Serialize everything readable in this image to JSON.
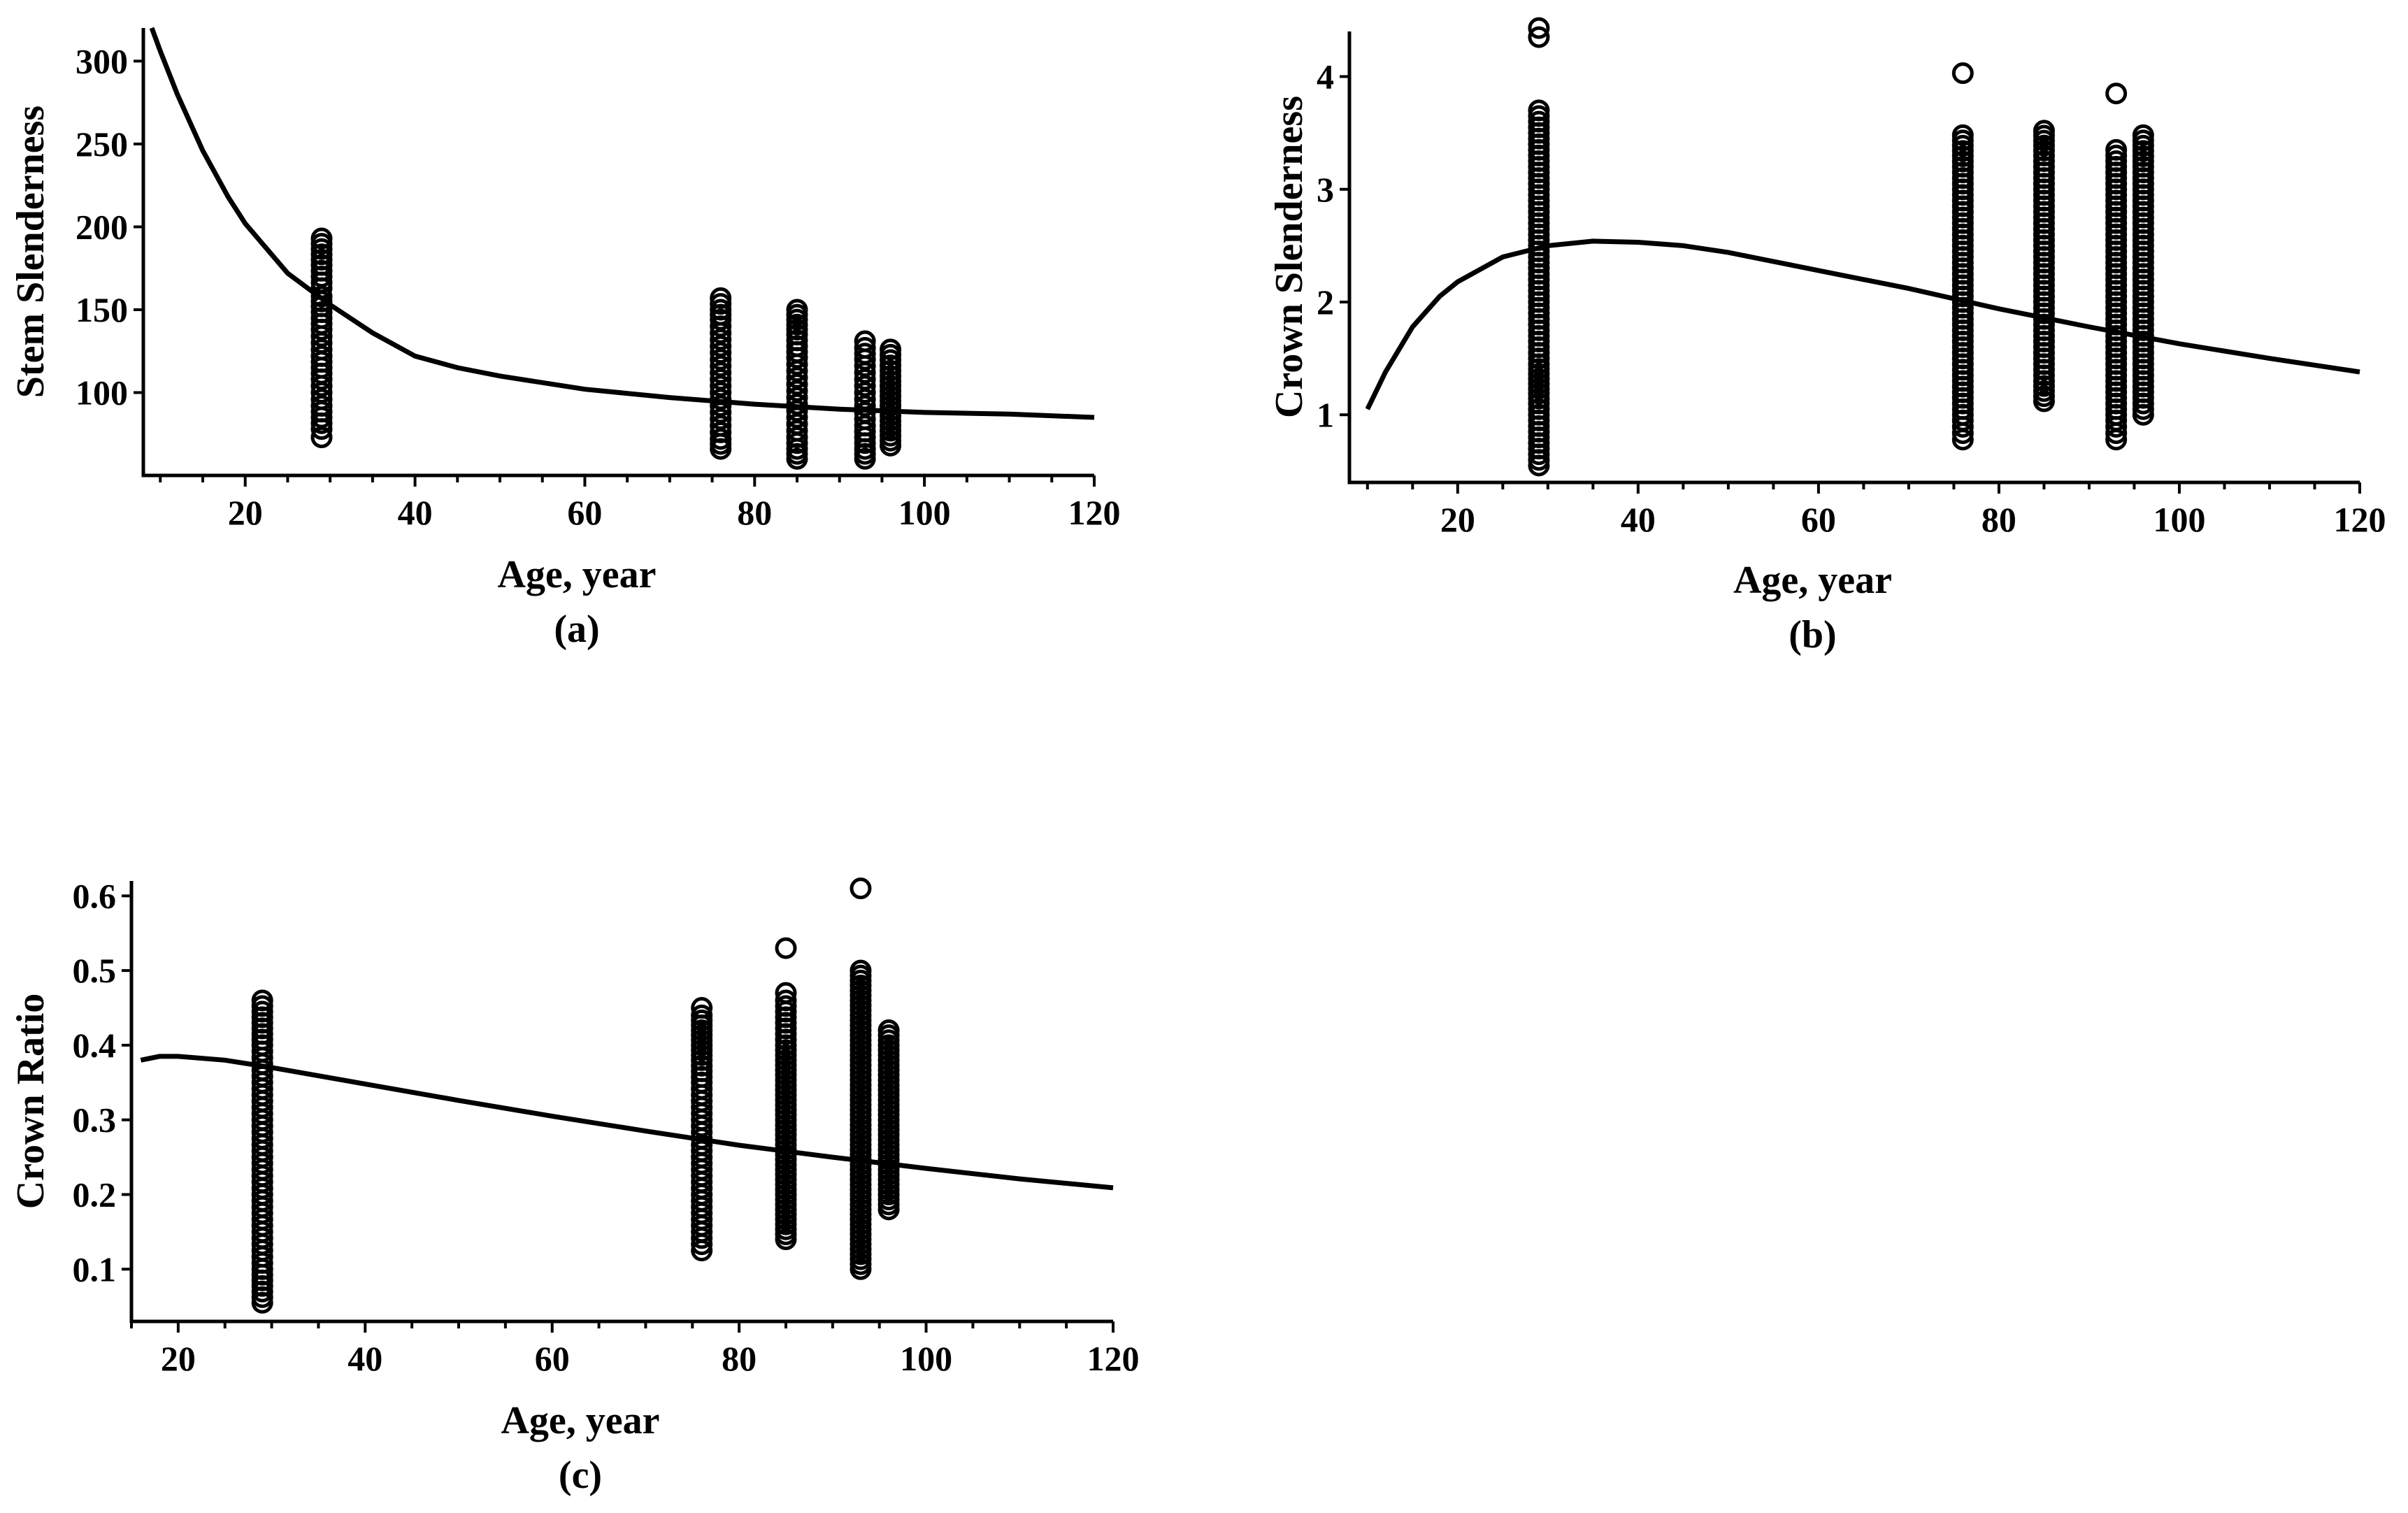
{
  "chart_data": [
    {
      "id": "a",
      "type": "scatter",
      "panel_label": "(a)",
      "xlabel": "Age, year",
      "ylabel": "Stem Slenderness",
      "xlim": [
        8,
        120
      ],
      "ylim": [
        50,
        320
      ],
      "xticks": [
        20,
        40,
        60,
        80,
        100,
        120
      ],
      "xtick_labels": [
        "20",
        "40",
        "60",
        "80",
        "100",
        "120"
      ],
      "yticks": [
        100,
        150,
        200,
        250,
        300
      ],
      "ytick_labels": [
        "100",
        "150",
        "200",
        "250",
        "300"
      ],
      "fitted_curve": {
        "x": [
          9,
          10,
          12,
          15,
          18,
          20,
          25,
          30,
          35,
          40,
          45,
          50,
          60,
          70,
          80,
          90,
          100,
          110,
          120
        ],
        "y": [
          322,
          306,
          280,
          246,
          218,
          202,
          172,
          153,
          136,
          122,
          115,
          110,
          102,
          97,
          93,
          90,
          88,
          87,
          85
        ]
      },
      "points": [
        {
          "x": 29,
          "y": [
            73,
            78,
            85,
            92,
            100,
            108,
            115,
            122,
            130,
            138,
            145,
            152,
            158,
            163,
            170,
            177,
            193
          ]
        },
        {
          "x": 76,
          "y": [
            66,
            72,
            80,
            88,
            96,
            104,
            112,
            120,
            128,
            136,
            144,
            150,
            157
          ]
        },
        {
          "x": 85,
          "y": [
            60,
            66,
            73,
            81,
            89,
            97,
            105,
            113,
            121,
            128,
            135,
            150
          ]
        },
        {
          "x": 93,
          "y": [
            60,
            66,
            73,
            80,
            88,
            96,
            104,
            112,
            120,
            127,
            131
          ]
        },
        {
          "x": 96,
          "y": [
            68,
            74,
            80,
            86,
            92,
            98,
            104,
            110,
            126
          ]
        }
      ]
    },
    {
      "id": "b",
      "type": "scatter",
      "panel_label": "(b)",
      "xlabel": "Age, year",
      "ylabel": "Crown Slenderness",
      "xlim": [
        8,
        120
      ],
      "ylim": [
        0.4,
        4.4
      ],
      "xticks": [
        20,
        40,
        60,
        80,
        100,
        120
      ],
      "xtick_labels": [
        "20",
        "40",
        "60",
        "80",
        "100",
        "120"
      ],
      "yticks": [
        1,
        2,
        3,
        4
      ],
      "ytick_labels": [
        "1",
        "2",
        "3",
        "4"
      ],
      "fitted_curve": {
        "x": [
          10,
          12,
          15,
          18,
          20,
          25,
          30,
          35,
          40,
          45,
          50,
          60,
          70,
          80,
          90,
          100,
          110,
          120
        ],
        "y": [
          1.05,
          1.38,
          1.78,
          2.05,
          2.18,
          2.4,
          2.5,
          2.54,
          2.53,
          2.5,
          2.44,
          2.28,
          2.12,
          1.94,
          1.78,
          1.63,
          1.5,
          1.38
        ]
      },
      "points": [
        {
          "x": 29,
          "y": [
            0.55,
            0.75,
            1.0,
            1.1,
            1.45,
            1.6,
            1.75,
            1.9,
            2.05,
            2.2,
            2.35,
            2.5,
            2.65,
            2.8,
            2.95,
            3.1,
            3.25,
            3.4,
            3.55,
            3.7,
            4.35,
            4.43
          ]
        },
        {
          "x": 76,
          "y": [
            0.78,
            0.95,
            1.2,
            1.4,
            1.6,
            1.8,
            2.0,
            2.2,
            2.4,
            2.6,
            2.8,
            3.0,
            3.2,
            3.48,
            4.03
          ]
        },
        {
          "x": 85,
          "y": [
            1.12,
            1.3,
            1.5,
            1.7,
            1.9,
            2.1,
            2.3,
            2.5,
            2.7,
            2.9,
            3.1,
            3.3,
            3.52
          ]
        },
        {
          "x": 93,
          "y": [
            0.78,
            0.95,
            1.1,
            1.3,
            1.5,
            1.7,
            1.9,
            2.1,
            2.3,
            2.5,
            2.7,
            2.9,
            3.1,
            3.35,
            3.85
          ]
        },
        {
          "x": 96,
          "y": [
            1.0,
            1.1,
            1.25,
            1.45,
            1.65,
            1.85,
            2.05,
            2.25,
            2.45,
            2.65,
            2.85,
            3.05,
            3.2,
            3.48
          ]
        }
      ]
    },
    {
      "id": "c",
      "type": "scatter",
      "panel_label": "(c)",
      "xlabel": "Age, year",
      "ylabel": "Crown Ratio",
      "xlim": [
        15,
        120
      ],
      "ylim": [
        0.03,
        0.62
      ],
      "xticks": [
        20,
        40,
        60,
        80,
        100,
        120
      ],
      "xtick_labels": [
        "20",
        "40",
        "60",
        "80",
        "100",
        "120"
      ],
      "yticks": [
        0.1,
        0.2,
        0.3,
        0.4,
        0.5,
        0.6
      ],
      "ytick_labels": [
        "0.1",
        "0.2",
        "0.3",
        "0.4",
        "0.5",
        "0.6"
      ],
      "fitted_curve": {
        "x": [
          16,
          18,
          20,
          25,
          30,
          40,
          50,
          60,
          70,
          80,
          90,
          100,
          110,
          120
        ],
        "y": [
          0.38,
          0.385,
          0.385,
          0.38,
          0.37,
          0.348,
          0.326,
          0.305,
          0.285,
          0.266,
          0.25,
          0.235,
          0.221,
          0.209
        ]
      },
      "points": [
        {
          "x": 29,
          "y": [
            0.055,
            0.1,
            0.125,
            0.15,
            0.175,
            0.2,
            0.225,
            0.25,
            0.275,
            0.3,
            0.325,
            0.35,
            0.375,
            0.4,
            0.43,
            0.46
          ]
        },
        {
          "x": 76,
          "y": [
            0.125,
            0.15,
            0.175,
            0.2,
            0.225,
            0.25,
            0.275,
            0.3,
            0.325,
            0.35,
            0.38,
            0.4,
            0.44,
            0.45
          ]
        },
        {
          "x": 85,
          "y": [
            0.14,
            0.16,
            0.18,
            0.2,
            0.22,
            0.24,
            0.26,
            0.28,
            0.3,
            0.32,
            0.34,
            0.36,
            0.38,
            0.4,
            0.43,
            0.46,
            0.47,
            0.53
          ]
        },
        {
          "x": 93,
          "y": [
            0.1,
            0.12,
            0.14,
            0.16,
            0.18,
            0.2,
            0.22,
            0.24,
            0.26,
            0.28,
            0.3,
            0.32,
            0.34,
            0.36,
            0.38,
            0.4,
            0.42,
            0.44,
            0.46,
            0.48,
            0.5,
            0.61
          ]
        },
        {
          "x": 96,
          "y": [
            0.18,
            0.2,
            0.22,
            0.24,
            0.26,
            0.28,
            0.3,
            0.32,
            0.34,
            0.36,
            0.38,
            0.42
          ]
        }
      ]
    }
  ]
}
